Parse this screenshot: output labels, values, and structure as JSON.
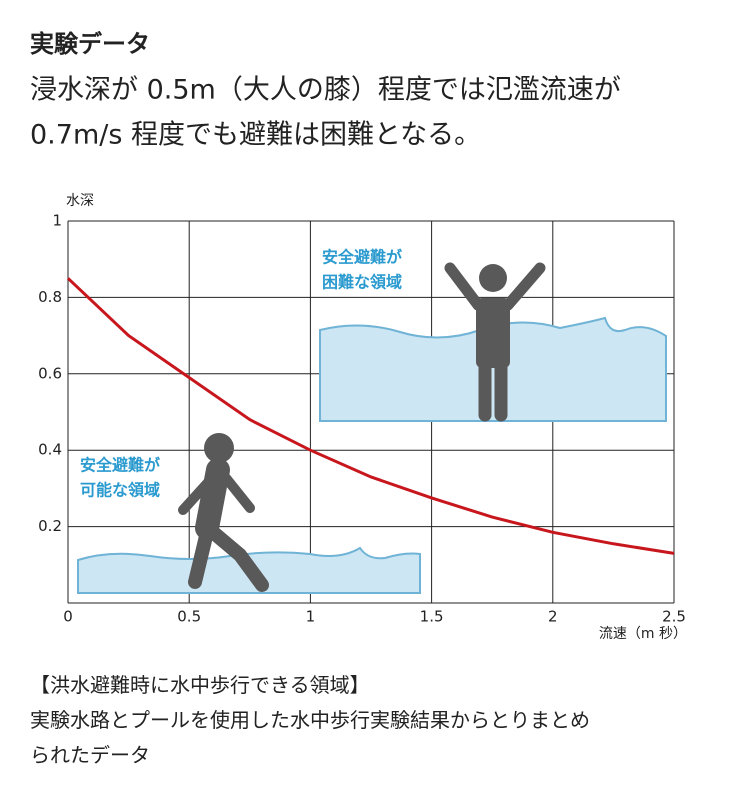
{
  "header": {
    "title": "実験データ",
    "lines": [
      "浸水深が 0.5m（大人の膝）程度では氾濫流速が",
      "0.7m/s 程度でも避難は困難となる。"
    ]
  },
  "chart_data": {
    "type": "line",
    "y_label": "水深",
    "x_label": "流速（m 秒）",
    "x": [
      0,
      0.25,
      0.5,
      0.75,
      1,
      1.25,
      1.5,
      1.75,
      2,
      2.25,
      2.5
    ],
    "values": [
      0.85,
      0.7,
      0.59,
      0.48,
      0.4,
      0.33,
      0.275,
      0.225,
      0.185,
      0.155,
      0.13
    ],
    "color": "#c8161d",
    "xlim": [
      0,
      2.5
    ],
    "xticks": [
      0,
      0.5,
      1,
      1.5,
      2,
      2.5
    ],
    "ylim": [
      0,
      1
    ],
    "yticks": [
      0.2,
      0.4,
      0.6,
      0.8,
      1
    ],
    "grid": true,
    "annotation_color": "#2b9bcf",
    "annotations": [
      {
        "lines": [
          "安全避難が",
          "困難な領域"
        ]
      },
      {
        "lines": [
          "安全避難が",
          "可能な領域"
        ]
      }
    ]
  },
  "footer": {
    "heading": "【洪水避難時に水中歩行できる領域】",
    "lines": [
      "実験水路とプールを使用した水中歩行実験結果からとりまとめ",
      "られたデータ"
    ]
  }
}
